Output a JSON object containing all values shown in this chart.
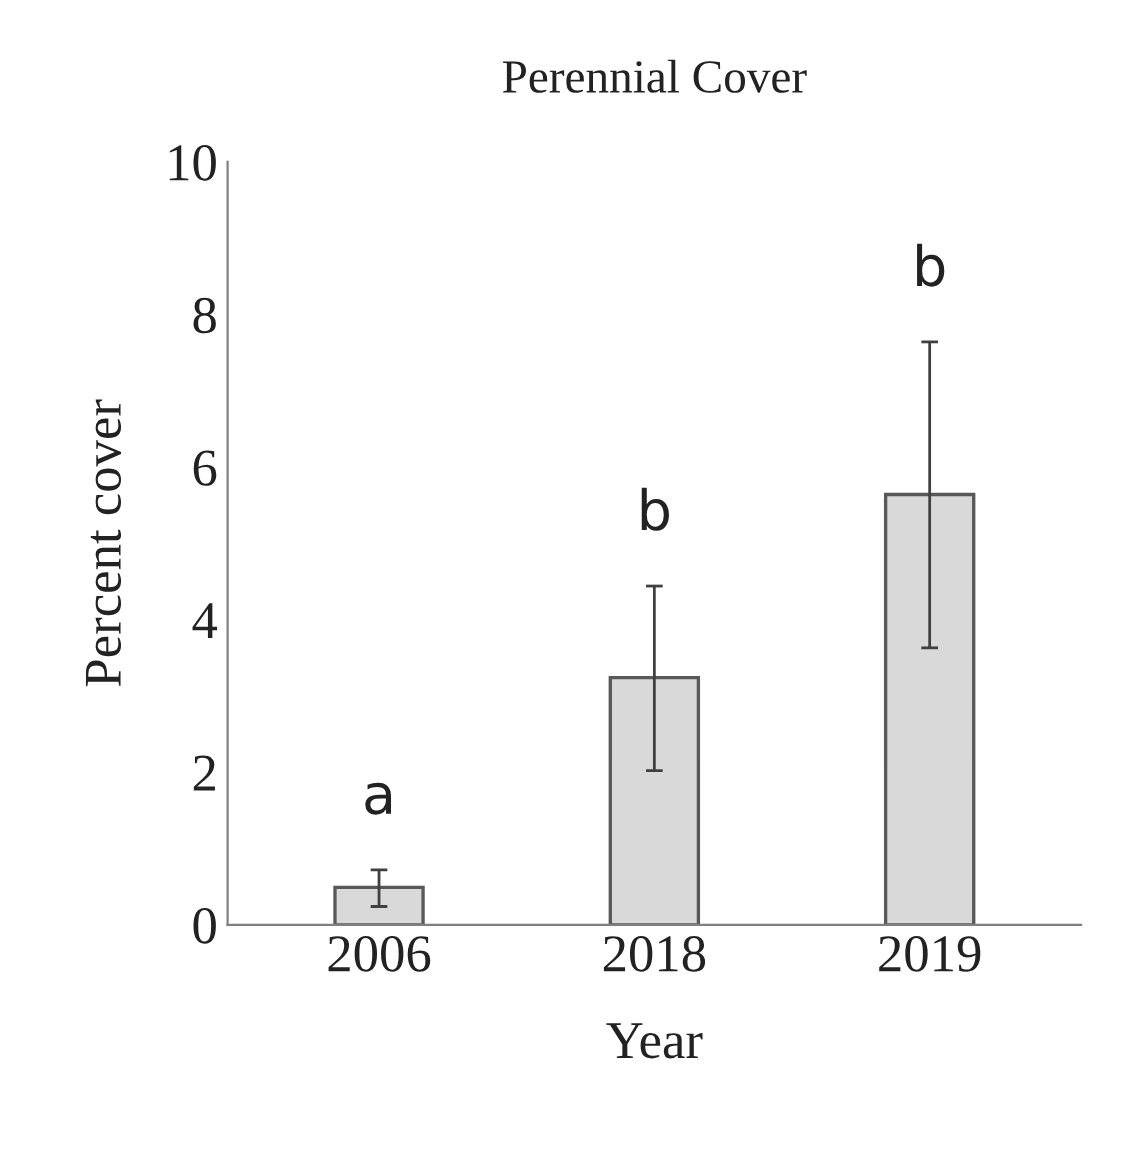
{
  "chart_data": {
    "type": "bar",
    "title": "Perennial Cover",
    "xlabel": "Year",
    "ylabel": "Percent cover",
    "categories": [
      "2006",
      "2018",
      "2019"
    ],
    "values": [
      0.49,
      3.24,
      5.64
    ],
    "errors": [
      [
        0.24,
        0.72
      ],
      [
        2.02,
        4.44
      ],
      [
        3.63,
        7.64
      ]
    ],
    "color": "#d9d9d9",
    "ylim": [
      0,
      10
    ],
    "yticks": [
      0,
      2,
      4,
      6,
      8,
      10
    ],
    "grid": false,
    "annotations": [
      "a",
      "b",
      "b"
    ]
  }
}
